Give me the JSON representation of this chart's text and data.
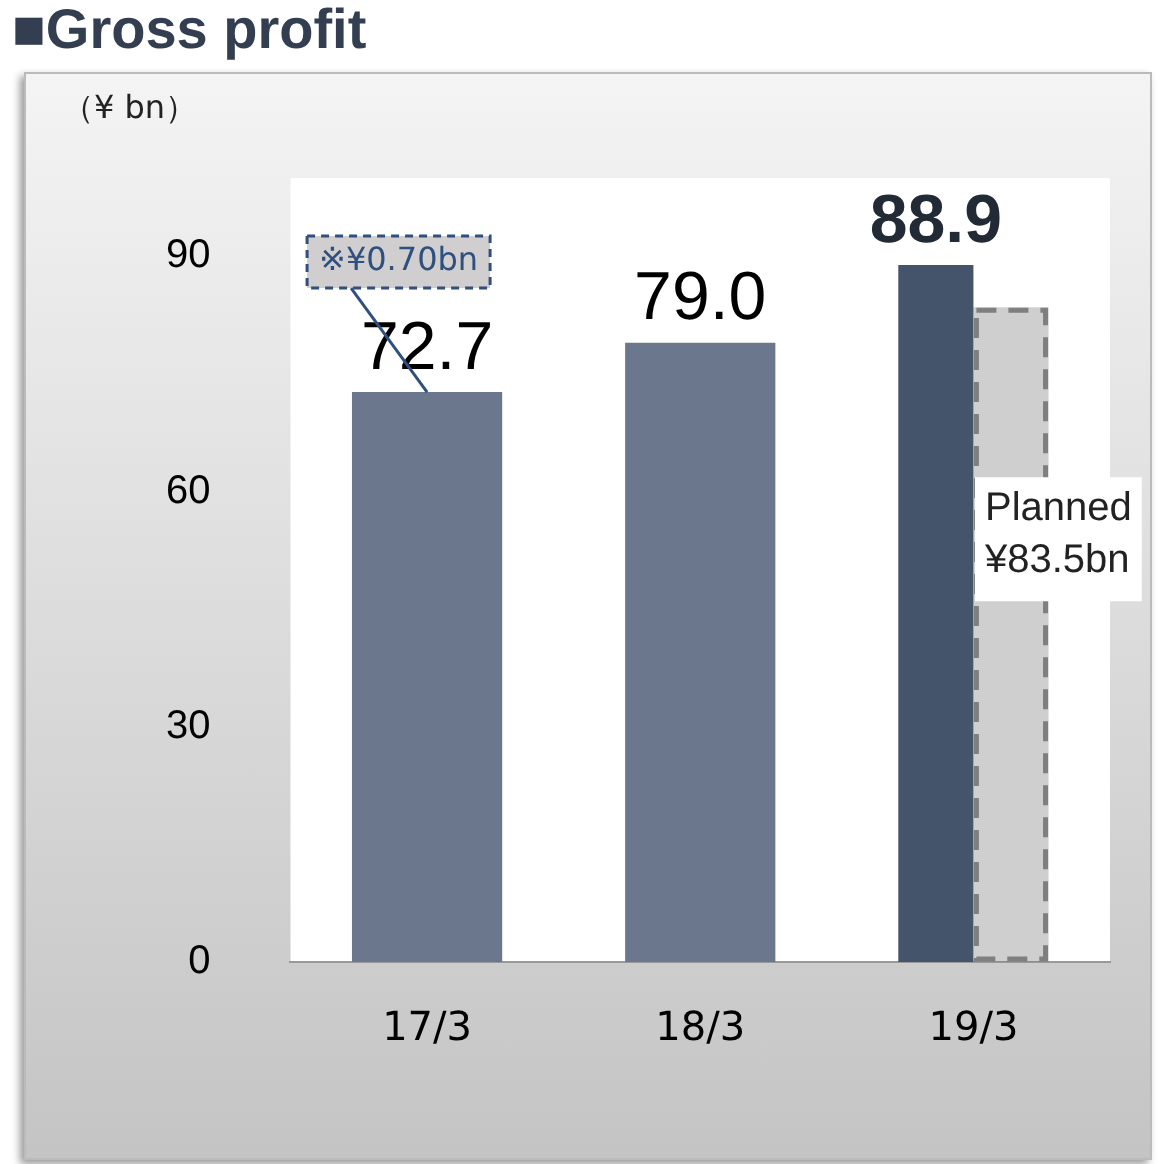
{
  "chart_data": {
    "type": "bar",
    "title": "■Gross profit",
    "ylabel": "（¥ bn）",
    "categories": [
      "17/3",
      "18/3",
      "19/3"
    ],
    "series": [
      {
        "colors": [
          "#6b778c",
          "#6b778c",
          "#44546a"
        ],
        "values": [
          72.7,
          79.0,
          88.9
        ],
        "value_labels": [
          "72.7",
          "79.0",
          "88.9"
        ]
      },
      {
        "color": "#7f7f7f",
        "line_style": "dashed",
        "values": [
          null,
          null,
          83.5
        ],
        "value_labels": [
          null,
          null,
          "Planned ¥83.5bn"
        ]
      }
    ],
    "annotations": [
      {
        "text": "※¥0.70bn",
        "x": "17/3",
        "y": 72.7
      }
    ],
    "ylim": [
      0,
      100
    ],
    "yticks": [
      0,
      30,
      60,
      90
    ],
    "grid": false,
    "legend": false
  }
}
